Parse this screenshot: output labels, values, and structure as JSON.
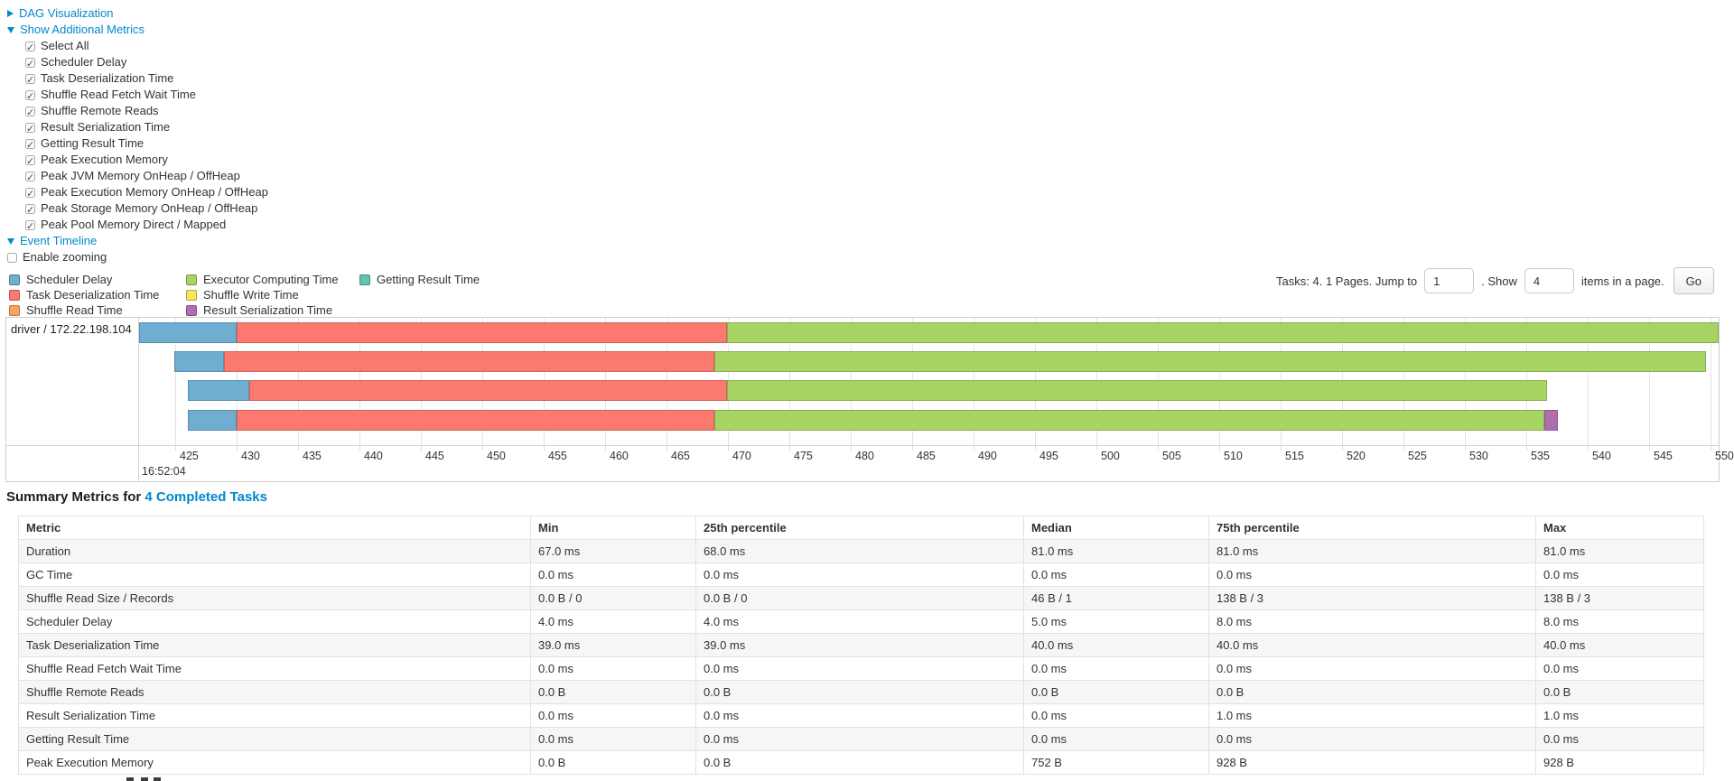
{
  "colors": {
    "link": "#0088cc",
    "table_stripe": "#f6f6f6",
    "chart_border": "#cfcfcf",
    "grid_line": "#e4e4e4"
  },
  "sections": {
    "dag": {
      "label": "DAG Visualization",
      "state": "collapsed"
    },
    "additional_metrics": {
      "label": "Show Additional Metrics",
      "state": "expanded",
      "items": [
        {
          "label": "Select All",
          "checked": true
        },
        {
          "label": "Scheduler Delay",
          "checked": true
        },
        {
          "label": "Task Deserialization Time",
          "checked": true
        },
        {
          "label": "Shuffle Read Fetch Wait Time",
          "checked": true
        },
        {
          "label": "Shuffle Remote Reads",
          "checked": true
        },
        {
          "label": "Result Serialization Time",
          "checked": true
        },
        {
          "label": "Getting Result Time",
          "checked": true
        },
        {
          "label": "Peak Execution Memory",
          "checked": true
        },
        {
          "label": "Peak JVM Memory OnHeap / OffHeap",
          "checked": true
        },
        {
          "label": "Peak Execution Memory OnHeap / OffHeap",
          "checked": true
        },
        {
          "label": "Peak Storage Memory OnHeap / OffHeap",
          "checked": true
        },
        {
          "label": "Peak Pool Memory Direct / Mapped",
          "checked": true
        }
      ]
    },
    "event_timeline": {
      "label": "Event Timeline",
      "state": "expanded",
      "enable_zooming_label": "Enable zooming",
      "enable_zooming_checked": false
    }
  },
  "legend": {
    "columns": [
      [
        {
          "label": "Scheduler Delay",
          "color": "#6FADD1"
        },
        {
          "label": "Task Deserialization Time",
          "color": "#FB796F"
        },
        {
          "label": "Shuffle Read Time",
          "color": "#F9A45C"
        }
      ],
      [
        {
          "label": "Executor Computing Time",
          "color": "#A8D464"
        },
        {
          "label": "Shuffle Write Time",
          "color": "#F4E65F"
        },
        {
          "label": "Result Serialization Time",
          "color": "#AF6EB2"
        }
      ],
      [
        {
          "label": "Getting Result Time",
          "color": "#62C4AF"
        }
      ]
    ]
  },
  "pagination": {
    "tasks_text": "Tasks: 4. 1 Pages. Jump to",
    "jump_value": "1",
    "show_text": ". Show",
    "show_value": "4",
    "items_text": "items in a page.",
    "go_label": "Go"
  },
  "chart_data": {
    "type": "timeline",
    "group_label": "driver / 172.22.198.104",
    "axis": {
      "min": 422.06,
      "max": 550.66,
      "tick_step_ms": 5,
      "ticks": [
        425,
        430,
        435,
        440,
        445,
        450,
        455,
        460,
        465,
        470,
        475,
        480,
        485,
        490,
        495,
        500,
        505,
        510,
        515,
        520,
        525,
        530,
        535,
        540,
        545,
        550
      ],
      "base_time_label": "16:52:04"
    },
    "tasks": [
      {
        "segments": [
          {
            "metric": "Scheduler Delay",
            "start": 422.06,
            "end": 430.0
          },
          {
            "metric": "Task Deserialization Time",
            "start": 430.0,
            "end": 469.9
          },
          {
            "metric": "Executor Computing Time",
            "start": 469.9,
            "end": 550.66
          }
        ]
      },
      {
        "segments": [
          {
            "metric": "Scheduler Delay",
            "start": 424.9,
            "end": 429.0
          },
          {
            "metric": "Task Deserialization Time",
            "start": 429.0,
            "end": 468.9
          },
          {
            "metric": "Executor Computing Time",
            "start": 468.9,
            "end": 549.6
          }
        ]
      },
      {
        "segments": [
          {
            "metric": "Scheduler Delay",
            "start": 426.0,
            "end": 431.0
          },
          {
            "metric": "Task Deserialization Time",
            "start": 431.0,
            "end": 469.9
          },
          {
            "metric": "Executor Computing Time",
            "start": 469.9,
            "end": 536.7
          }
        ]
      },
      {
        "segments": [
          {
            "metric": "Scheduler Delay",
            "start": 426.0,
            "end": 430.0
          },
          {
            "metric": "Task Deserialization Time",
            "start": 430.0,
            "end": 468.9
          },
          {
            "metric": "Executor Computing Time",
            "start": 468.9,
            "end": 536.5
          },
          {
            "metric": "Result Serialization Time",
            "start": 536.5,
            "end": 537.6
          }
        ]
      }
    ]
  },
  "summary": {
    "heading_prefix": "Summary Metrics for",
    "heading_link": "4 Completed Tasks",
    "table": {
      "columns": [
        "Metric",
        "Min",
        "25th percentile",
        "Median",
        "75th percentile",
        "Max"
      ],
      "rows": [
        [
          "Duration",
          "67.0 ms",
          "68.0 ms",
          "81.0 ms",
          "81.0 ms",
          "81.0 ms"
        ],
        [
          "GC Time",
          "0.0 ms",
          "0.0 ms",
          "0.0 ms",
          "0.0 ms",
          "0.0 ms"
        ],
        [
          "Shuffle Read Size / Records",
          "0.0 B / 0",
          "0.0 B / 0",
          "46 B / 1",
          "138 B / 3",
          "138 B / 3"
        ],
        [
          "Scheduler Delay",
          "4.0 ms",
          "4.0 ms",
          "5.0 ms",
          "8.0 ms",
          "8.0 ms"
        ],
        [
          "Task Deserialization Time",
          "39.0 ms",
          "39.0 ms",
          "40.0 ms",
          "40.0 ms",
          "40.0 ms"
        ],
        [
          "Shuffle Read Fetch Wait Time",
          "0.0 ms",
          "0.0 ms",
          "0.0 ms",
          "0.0 ms",
          "0.0 ms"
        ],
        [
          "Shuffle Remote Reads",
          "0.0 B",
          "0.0 B",
          "0.0 B",
          "0.0 B",
          "0.0 B"
        ],
        [
          "Result Serialization Time",
          "0.0 ms",
          "0.0 ms",
          "0.0 ms",
          "1.0 ms",
          "1.0 ms"
        ],
        [
          "Getting Result Time",
          "0.0 ms",
          "0.0 ms",
          "0.0 ms",
          "0.0 ms",
          "0.0 ms"
        ],
        [
          "Peak Execution Memory",
          "0.0 B",
          "0.0 B",
          "752 B",
          "928 B",
          "928 B"
        ]
      ]
    }
  }
}
